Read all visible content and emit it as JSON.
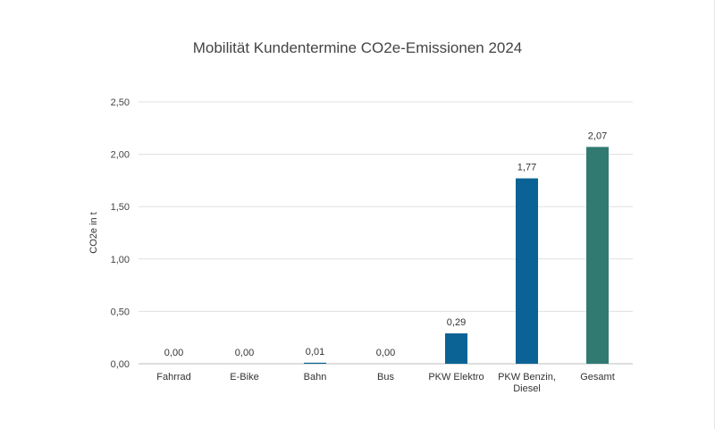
{
  "chart_data": {
    "type": "bar",
    "title": "Mobilität Kundentermine CO2e-Emissionen 2024",
    "xlabel": "",
    "ylabel": "CO2e in t",
    "ylim": [
      0,
      2.5
    ],
    "yticks": [
      "0,00",
      "0,50",
      "1,00",
      "1,50",
      "2,00",
      "2,50"
    ],
    "ytick_values": [
      0,
      0.5,
      1.0,
      1.5,
      2.0,
      2.5
    ],
    "grid": true,
    "legend": "none",
    "categories": [
      [
        "Fahrrad"
      ],
      [
        "E-Bike"
      ],
      [
        "Bahn"
      ],
      [
        "Bus"
      ],
      [
        "PKW Elektro"
      ],
      [
        "PKW Benzin,",
        "Diesel"
      ],
      [
        "Gesamt"
      ]
    ],
    "values": [
      0.0,
      0.0,
      0.01,
      0.0,
      0.29,
      1.77,
      2.07
    ],
    "data_labels": [
      "0,00",
      "0,00",
      "0,01",
      "0,00",
      "0,29",
      "1,77",
      "2,07"
    ],
    "colors": [
      "#0b6395",
      "#0b6395",
      "#0b6395",
      "#0b6395",
      "#0b6395",
      "#0b6395",
      "#317a72"
    ]
  }
}
